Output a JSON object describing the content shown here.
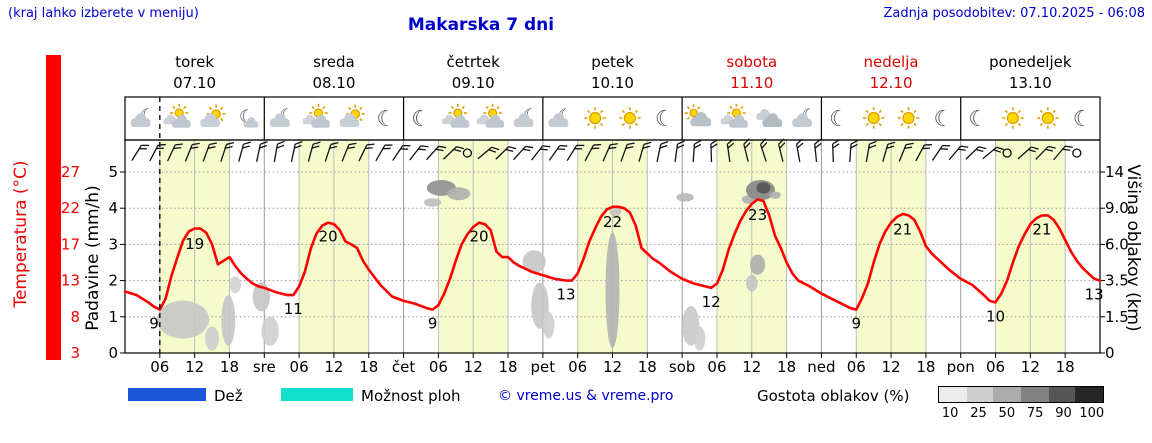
{
  "header": {
    "hint": "(kraj lahko izberete v meniju)",
    "title": "Makarska 7 dni",
    "updated": "Zadnja posodobitev: 07.10.2025 - 06:08"
  },
  "days": [
    {
      "name": "torek",
      "date": "07.10",
      "color": "#000000"
    },
    {
      "name": "sreda",
      "date": "08.10",
      "color": "#000000"
    },
    {
      "name": "četrtek",
      "date": "09.10",
      "color": "#000000"
    },
    {
      "name": "petek",
      "date": "10.10",
      "color": "#000000"
    },
    {
      "name": "sobota",
      "date": "11.10",
      "color": "#dd0000"
    },
    {
      "name": "nedelja",
      "date": "12.10",
      "color": "#dd0000"
    },
    {
      "name": "ponedeljek",
      "date": "13.10",
      "color": "#000000"
    }
  ],
  "axes": {
    "temp": {
      "label": "Temperatura (°C)",
      "ticks": [
        27,
        22,
        17,
        13,
        8,
        3
      ]
    },
    "precip": {
      "label": "Padavine (mm/h)",
      "ticks": [
        5,
        4,
        3,
        2,
        1,
        0
      ]
    },
    "cloud": {
      "label": "Višina oblakov (km)",
      "ticks": [
        "14",
        "9.0",
        "6.0",
        "3.5",
        "1.5",
        "0"
      ],
      "tick_km": [
        14,
        9,
        6,
        3.5,
        1.5,
        0
      ]
    },
    "hour_labels": [
      "06",
      "12",
      "18"
    ],
    "day_abbrs": [
      "sre",
      "čet",
      "pet",
      "sob",
      "ned",
      "pon"
    ]
  },
  "legend": {
    "rain": "Dež",
    "showers": "Možnost ploh",
    "copyright": "© vreme.us & vreme.pro",
    "cloud_density": "Gostota oblakov (%)",
    "density_ticks": [
      "10",
      "25",
      "50",
      "75",
      "90",
      "100"
    ]
  },
  "colors": {
    "blue_text": "#0000cc",
    "temp_line": "#ff0000",
    "weekend": "#dd0000",
    "day_band": "#f6fbcc",
    "rain": "#1a56d8",
    "showers": "#0fe0cc",
    "axis_red": "#ee0000"
  },
  "chart_data": {
    "type": "line",
    "title": "Makarska 7 dni",
    "x_unit": "hours from torek 07.10 00:00",
    "x_range": [
      0,
      168
    ],
    "now_hour": 6,
    "daylight_bands": [
      [
        6,
        18
      ],
      [
        30,
        42
      ],
      [
        54,
        66
      ],
      [
        78,
        90
      ],
      [
        102,
        114
      ],
      [
        126,
        138
      ],
      [
        150,
        162
      ]
    ],
    "temperature_c": {
      "unit": "°C",
      "points": [
        [
          0,
          11.5
        ],
        [
          2,
          11
        ],
        [
          4,
          10
        ],
        [
          5,
          9.4
        ],
        [
          6,
          9
        ],
        [
          7,
          10.5
        ],
        [
          8,
          13.5
        ],
        [
          9,
          15.5
        ],
        [
          10,
          17.5
        ],
        [
          11,
          18.8
        ],
        [
          12,
          19.2
        ],
        [
          13,
          19.2
        ],
        [
          14,
          18.6
        ],
        [
          15,
          17
        ],
        [
          16,
          14.8
        ],
        [
          17,
          15.2
        ],
        [
          18,
          15.6
        ],
        [
          19,
          14.6
        ],
        [
          20,
          13.8
        ],
        [
          21,
          13.2
        ],
        [
          22,
          12.6
        ],
        [
          23,
          12.2
        ],
        [
          24,
          12
        ],
        [
          26,
          11.4
        ],
        [
          28,
          11
        ],
        [
          29,
          11
        ],
        [
          30,
          12.2
        ],
        [
          31,
          14
        ],
        [
          32,
          16.5
        ],
        [
          33,
          18.5
        ],
        [
          34,
          19.6
        ],
        [
          35,
          20
        ],
        [
          36,
          19.8
        ],
        [
          37,
          19
        ],
        [
          38,
          17.4
        ],
        [
          39,
          17
        ],
        [
          40,
          16.6
        ],
        [
          41,
          15.2
        ],
        [
          42,
          14.2
        ],
        [
          44,
          12.4
        ],
        [
          46,
          10.8
        ],
        [
          48,
          10.2
        ],
        [
          50,
          9.8
        ],
        [
          52,
          9.2
        ],
        [
          53,
          9
        ],
        [
          54,
          9.6
        ],
        [
          55,
          11.2
        ],
        [
          56,
          13.2
        ],
        [
          57,
          15.2
        ],
        [
          58,
          17
        ],
        [
          59,
          18.4
        ],
        [
          60,
          19.4
        ],
        [
          61,
          20
        ],
        [
          62,
          19.8
        ],
        [
          63,
          19
        ],
        [
          64,
          16.2
        ],
        [
          65,
          15.6
        ],
        [
          66,
          15.6
        ],
        [
          67,
          15
        ],
        [
          68,
          14.6
        ],
        [
          70,
          14
        ],
        [
          72,
          13.6
        ],
        [
          74,
          13.2
        ],
        [
          76,
          13
        ],
        [
          77,
          13
        ],
        [
          78,
          13.8
        ],
        [
          79,
          15.4
        ],
        [
          80,
          17.4
        ],
        [
          81,
          19.2
        ],
        [
          82,
          20.8
        ],
        [
          83,
          21.8
        ],
        [
          84,
          22.2
        ],
        [
          85,
          22.2
        ],
        [
          86,
          22
        ],
        [
          87,
          21.4
        ],
        [
          88,
          19.6
        ],
        [
          89,
          16.6
        ],
        [
          90,
          16
        ],
        [
          91,
          15.4
        ],
        [
          92,
          15
        ],
        [
          94,
          14
        ],
        [
          96,
          13.2
        ],
        [
          98,
          12.6
        ],
        [
          100,
          12.2
        ],
        [
          101,
          12
        ],
        [
          102,
          12.6
        ],
        [
          103,
          14.2
        ],
        [
          104,
          16.4
        ],
        [
          105,
          18.4
        ],
        [
          106,
          20.2
        ],
        [
          107,
          21.6
        ],
        [
          108,
          22.6
        ],
        [
          109,
          23.2
        ],
        [
          110,
          23
        ],
        [
          111,
          21
        ],
        [
          112,
          18.2
        ],
        [
          113,
          16.6
        ],
        [
          114,
          15
        ],
        [
          115,
          13.8
        ],
        [
          116,
          13
        ],
        [
          118,
          12.2
        ],
        [
          120,
          11.2
        ],
        [
          122,
          10.4
        ],
        [
          124,
          9.6
        ],
        [
          125,
          9.2
        ],
        [
          126,
          9
        ],
        [
          127,
          10.6
        ],
        [
          128,
          12.6
        ],
        [
          129,
          15
        ],
        [
          130,
          17
        ],
        [
          131,
          18.8
        ],
        [
          132,
          20
        ],
        [
          133,
          20.8
        ],
        [
          134,
          21.2
        ],
        [
          135,
          21
        ],
        [
          136,
          20.4
        ],
        [
          137,
          18.8
        ],
        [
          138,
          16.8
        ],
        [
          139,
          16
        ],
        [
          140,
          15.4
        ],
        [
          142,
          14.2
        ],
        [
          144,
          13.2
        ],
        [
          146,
          12.4
        ],
        [
          148,
          11
        ],
        [
          149,
          10.2
        ],
        [
          150,
          10
        ],
        [
          151,
          11.2
        ],
        [
          152,
          13
        ],
        [
          153,
          15
        ],
        [
          154,
          16.8
        ],
        [
          155,
          18.4
        ],
        [
          156,
          19.8
        ],
        [
          157,
          20.6
        ],
        [
          158,
          21
        ],
        [
          159,
          21
        ],
        [
          160,
          20.4
        ],
        [
          161,
          19.2
        ],
        [
          162,
          17.6
        ],
        [
          163,
          16.2
        ],
        [
          164,
          15.2
        ],
        [
          165,
          14.4
        ],
        [
          166,
          13.8
        ],
        [
          167,
          13.2
        ],
        [
          168,
          13
        ]
      ]
    },
    "extrema_labels": [
      {
        "t": 5,
        "v": 9
      },
      {
        "t": 12,
        "v": 19
      },
      {
        "t": 29,
        "v": 11
      },
      {
        "t": 35,
        "v": 20
      },
      {
        "t": 53,
        "v": 9
      },
      {
        "t": 61,
        "v": 20
      },
      {
        "t": 76,
        "v": 13
      },
      {
        "t": 84,
        "v": 22
      },
      {
        "t": 101,
        "v": 12
      },
      {
        "t": 109,
        "v": 23
      },
      {
        "t": 126,
        "v": 9
      },
      {
        "t": 134,
        "v": 21
      },
      {
        "t": 150,
        "v": 10
      },
      {
        "t": 158,
        "v": 21
      },
      {
        "t": 167,
        "v": 13
      }
    ],
    "cloud_blobs": [
      {
        "t": 10,
        "km": 1.5,
        "dt": 4.5,
        "dkm": 0.9,
        "shade": 0.18
      },
      {
        "t": 15,
        "km": 0.6,
        "dt": 1.2,
        "dkm": 0.5,
        "shade": 0.15
      },
      {
        "t": 17.8,
        "km": 1.5,
        "dt": 1.2,
        "dkm": 1.2,
        "shade": 0.18
      },
      {
        "t": 19,
        "km": 3.3,
        "dt": 1,
        "dkm": 0.5,
        "shade": 0.12
      },
      {
        "t": 23.5,
        "km": 2.6,
        "dt": 1.5,
        "dkm": 0.8,
        "shade": 0.18
      },
      {
        "t": 25,
        "km": 0.9,
        "dt": 1.5,
        "dkm": 0.6,
        "shade": 0.14
      },
      {
        "t": 53,
        "km": 9.8,
        "dt": 1.5,
        "dkm": 0.6,
        "shade": 0.22
      },
      {
        "t": 54.5,
        "km": 11.8,
        "dt": 2.5,
        "dkm": 1.1,
        "shade": 0.45
      },
      {
        "t": 57.5,
        "km": 11,
        "dt": 2,
        "dkm": 0.9,
        "shade": 0.3
      },
      {
        "t": 70.5,
        "km": 4.8,
        "dt": 2,
        "dkm": 0.8,
        "shade": 0.18
      },
      {
        "t": 71.5,
        "km": 2.2,
        "dt": 1.5,
        "dkm": 1.2,
        "shade": 0.18
      },
      {
        "t": 73,
        "km": 1.2,
        "dt": 1,
        "dkm": 0.6,
        "shade": 0.14
      },
      {
        "t": 84,
        "km": 3.6,
        "dt": 1.2,
        "dkm": 3.4,
        "shade": 0.28
      },
      {
        "t": 84.5,
        "km": 8.8,
        "dt": 1,
        "dkm": 0.5,
        "shade": 0.2
      },
      {
        "t": 96.5,
        "km": 10.5,
        "dt": 1.5,
        "dkm": 0.6,
        "shade": 0.25
      },
      {
        "t": 97.5,
        "km": 1.2,
        "dt": 1.5,
        "dkm": 0.9,
        "shade": 0.16
      },
      {
        "t": 99,
        "km": 0.6,
        "dt": 1,
        "dkm": 0.5,
        "shade": 0.14
      },
      {
        "t": 107.5,
        "km": 10.2,
        "dt": 1.2,
        "dkm": 0.6,
        "shade": 0.3
      },
      {
        "t": 108,
        "km": 3.4,
        "dt": 1,
        "dkm": 0.5,
        "shade": 0.2
      },
      {
        "t": 109,
        "km": 4.6,
        "dt": 1.3,
        "dkm": 0.7,
        "shade": 0.3
      },
      {
        "t": 109.5,
        "km": 11.5,
        "dt": 2.5,
        "dkm": 1.4,
        "shade": 0.5
      },
      {
        "t": 110,
        "km": 11.8,
        "dt": 1.2,
        "dkm": 0.8,
        "shade": 0.75
      },
      {
        "t": 112,
        "km": 10.8,
        "dt": 1,
        "dkm": 0.5,
        "shade": 0.3
      }
    ],
    "wind_barbs": {
      "start_hour": 2,
      "step_hours": 3,
      "angles_deg": [
        32,
        28,
        25,
        22,
        20,
        18,
        15,
        12,
        10,
        12,
        15,
        18,
        22,
        26,
        30,
        34,
        38,
        42,
        46,
        0,
        50,
        46,
        42,
        38,
        35,
        32,
        28,
        24,
        20,
        16,
        12,
        8,
        4,
        -2,
        -8,
        -14,
        -18,
        -14,
        -10,
        -6,
        -2,
        4,
        10,
        16,
        22,
        28,
        34,
        40,
        46,
        50,
        0,
        48,
        44,
        40,
        0
      ],
      "calm_indices": [
        19,
        50,
        54
      ]
    },
    "weather_icons": [
      {
        "t": 3,
        "type": "cloud-moon"
      },
      {
        "t": 9,
        "type": "sun-clouds"
      },
      {
        "t": 15,
        "type": "sun-cloud"
      },
      {
        "t": 21,
        "type": "moon-cloud"
      },
      {
        "t": 27,
        "type": "cloud-moon"
      },
      {
        "t": 33,
        "type": "sun-clouds"
      },
      {
        "t": 39,
        "type": "sun-cloud"
      },
      {
        "t": 45,
        "type": "moon"
      },
      {
        "t": 51,
        "type": "moon"
      },
      {
        "t": 57,
        "type": "sun-clouds"
      },
      {
        "t": 63,
        "type": "sun-clouds"
      },
      {
        "t": 69,
        "type": "cloud-moon"
      },
      {
        "t": 75,
        "type": "cloud-moon"
      },
      {
        "t": 81,
        "type": "sun"
      },
      {
        "t": 87,
        "type": "sun"
      },
      {
        "t": 93,
        "type": "moon"
      },
      {
        "t": 99,
        "type": "cloud-sun"
      },
      {
        "t": 105,
        "type": "sun-clouds"
      },
      {
        "t": 111,
        "type": "clouds"
      },
      {
        "t": 117,
        "type": "cloud-moon"
      },
      {
        "t": 123,
        "type": "moon"
      },
      {
        "t": 129,
        "type": "sun"
      },
      {
        "t": 135,
        "type": "sun"
      },
      {
        "t": 141,
        "type": "moon"
      },
      {
        "t": 147,
        "type": "moon"
      },
      {
        "t": 153,
        "type": "sun"
      },
      {
        "t": 159,
        "type": "sun"
      },
      {
        "t": 165,
        "type": "moon"
      }
    ]
  }
}
